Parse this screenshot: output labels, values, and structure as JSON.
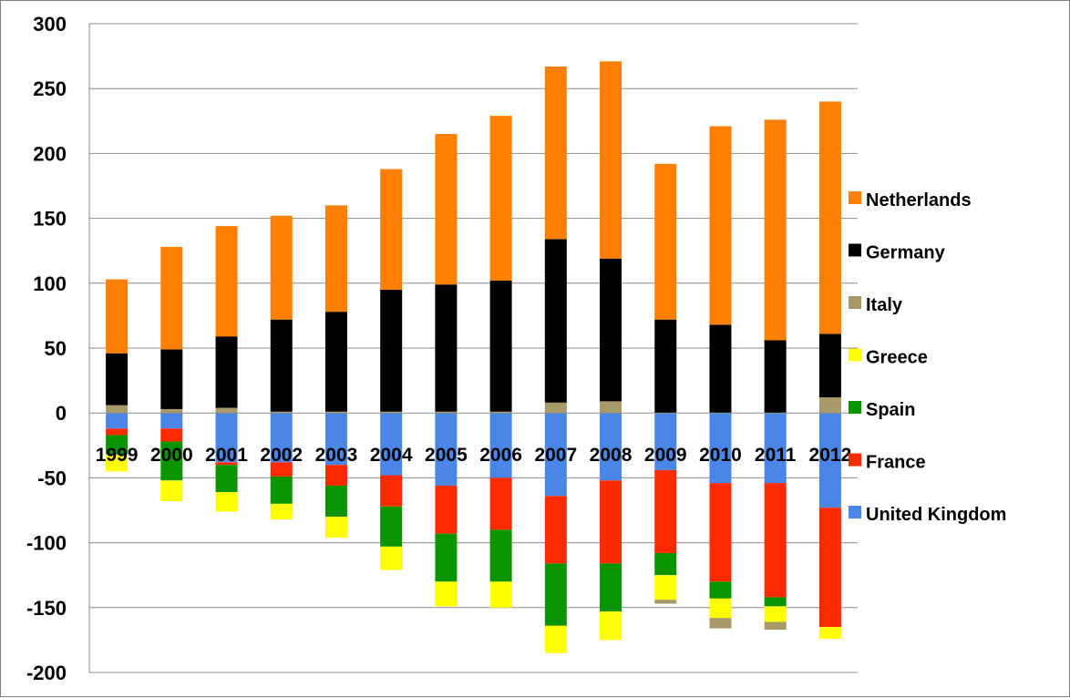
{
  "chart_data": {
    "type": "bar",
    "stacked": true,
    "title": "",
    "xlabel": "",
    "ylabel": "",
    "ylim": [
      -200,
      300
    ],
    "y_ticks": [
      300,
      250,
      200,
      150,
      100,
      50,
      0,
      -50,
      -100,
      -150,
      -200
    ],
    "grid": "horizontal",
    "legend_position": "right",
    "categories": [
      "1999",
      "2000",
      "2001",
      "2002",
      "2003",
      "2004",
      "2005",
      "2006",
      "2007",
      "2008",
      "2009",
      "2010",
      "2011",
      "2012"
    ],
    "series": [
      {
        "name": "United Kingdom",
        "color": "#4a86e8",
        "values": [
          -12,
          -12,
          -38,
          -38,
          -40,
          -48,
          -56,
          -50,
          -64,
          -52,
          -44,
          -54,
          -54,
          -73
        ]
      },
      {
        "name": "France",
        "color": "#ff2a00",
        "values": [
          -5,
          -10,
          -2,
          -11,
          -16,
          -24,
          -37,
          -40,
          -52,
          -64,
          -64,
          -76,
          -88,
          -92
        ]
      },
      {
        "name": "Spain",
        "color": "#0a9400",
        "values": [
          -15,
          -30,
          -21,
          -21,
          -24,
          -31,
          -37,
          -40,
          -48,
          -37,
          -17,
          -13,
          -7,
          0
        ]
      },
      {
        "name": "Greece",
        "color": "#ffff00",
        "values": [
          -13,
          -16,
          -15,
          -12,
          -16,
          -18,
          -19,
          -20,
          -21,
          -22,
          -19,
          -15,
          -12,
          -9
        ]
      },
      {
        "name": "Italy",
        "color": "#a8996a",
        "values": [
          6,
          3,
          4,
          1,
          1,
          1,
          1,
          1,
          8,
          9,
          -3,
          -8,
          -6,
          12
        ]
      },
      {
        "name": "Germany",
        "color": "#000000",
        "values": [
          40,
          46,
          55,
          71,
          77,
          94,
          98,
          101,
          126,
          110,
          72,
          68,
          56,
          49
        ]
      },
      {
        "name": "Netherlands",
        "color": "#ff7f00",
        "values": [
          57,
          79,
          85,
          80,
          82,
          93,
          116,
          127,
          133,
          152,
          120,
          153,
          170,
          179
        ]
      }
    ]
  }
}
